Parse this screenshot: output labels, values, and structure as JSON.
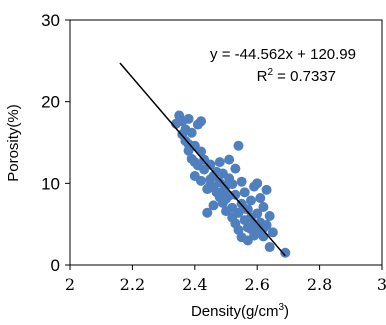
{
  "chart_data": {
    "type": "scatter",
    "title": "",
    "xlabel": "Density(g/cm",
    "xlabel_sup": "3",
    "xlabel_end": ")",
    "ylabel": "Porosity(%)",
    "xlim": [
      2,
      3
    ],
    "ylim": [
      0,
      30
    ],
    "x_ticks": [
      2,
      2.2,
      2.4,
      2.6,
      2.8,
      3
    ],
    "x_tick_labels": [
      "2",
      "2.2",
      "2.4",
      "2.6",
      "2.8",
      "3"
    ],
    "y_ticks": [
      0,
      10,
      20,
      30
    ],
    "y_tick_labels": [
      "0",
      "10",
      "20",
      "30"
    ],
    "grid": false,
    "marker_color": "#4f7fbd",
    "trendline_color": "#000000",
    "trendline": {
      "slope": -44.562,
      "intercept": 120.99,
      "x_range": [
        2.16,
        2.69
      ],
      "equation": "y = -44.562x + 120.99",
      "r2_prefix": "R",
      "r2_sup": "2",
      "r2_suffix": " = 0.7337"
    },
    "points": [
      {
        "x": 2.34,
        "y": 17.3
      },
      {
        "x": 2.35,
        "y": 18.3
      },
      {
        "x": 2.36,
        "y": 17.6
      },
      {
        "x": 2.37,
        "y": 16.6
      },
      {
        "x": 2.38,
        "y": 17.9
      },
      {
        "x": 2.37,
        "y": 15.2
      },
      {
        "x": 2.38,
        "y": 14.0
      },
      {
        "x": 2.39,
        "y": 13.0
      },
      {
        "x": 2.39,
        "y": 16.2
      },
      {
        "x": 2.4,
        "y": 14.6
      },
      {
        "x": 2.4,
        "y": 12.6
      },
      {
        "x": 2.41,
        "y": 17.2
      },
      {
        "x": 2.42,
        "y": 13.9
      },
      {
        "x": 2.42,
        "y": 17.6
      },
      {
        "x": 2.43,
        "y": 12.9
      },
      {
        "x": 2.43,
        "y": 11.7
      },
      {
        "x": 2.44,
        "y": 9.3
      },
      {
        "x": 2.45,
        "y": 9.8
      },
      {
        "x": 2.45,
        "y": 12.3
      },
      {
        "x": 2.46,
        "y": 10.9
      },
      {
        "x": 2.46,
        "y": 9.5
      },
      {
        "x": 2.47,
        "y": 11.4
      },
      {
        "x": 2.47,
        "y": 8.9
      },
      {
        "x": 2.48,
        "y": 12.6
      },
      {
        "x": 2.48,
        "y": 10.1
      },
      {
        "x": 2.49,
        "y": 7.6
      },
      {
        "x": 2.49,
        "y": 11.2
      },
      {
        "x": 2.5,
        "y": 9.7
      },
      {
        "x": 2.5,
        "y": 8.1
      },
      {
        "x": 2.51,
        "y": 12.9
      },
      {
        "x": 2.51,
        "y": 10.6
      },
      {
        "x": 2.52,
        "y": 7.0
      },
      {
        "x": 2.52,
        "y": 9.9
      },
      {
        "x": 2.53,
        "y": 8.6
      },
      {
        "x": 2.53,
        "y": 11.8
      },
      {
        "x": 2.54,
        "y": 14.6
      },
      {
        "x": 2.54,
        "y": 6.4
      },
      {
        "x": 2.55,
        "y": 10.2
      },
      {
        "x": 2.55,
        "y": 7.5
      },
      {
        "x": 2.56,
        "y": 5.5
      },
      {
        "x": 2.56,
        "y": 8.9
      },
      {
        "x": 2.57,
        "y": 6.8
      },
      {
        "x": 2.57,
        "y": 4.6
      },
      {
        "x": 2.58,
        "y": 7.9
      },
      {
        "x": 2.58,
        "y": 5.8
      },
      {
        "x": 2.59,
        "y": 3.6
      },
      {
        "x": 2.59,
        "y": 9.6
      },
      {
        "x": 2.6,
        "y": 6.3
      },
      {
        "x": 2.6,
        "y": 4.1
      },
      {
        "x": 2.61,
        "y": 8.2
      },
      {
        "x": 2.61,
        "y": 5.2
      },
      {
        "x": 2.62,
        "y": 3.5
      },
      {
        "x": 2.62,
        "y": 7.1
      },
      {
        "x": 2.63,
        "y": 9.2
      },
      {
        "x": 2.63,
        "y": 4.9
      },
      {
        "x": 2.64,
        "y": 2.2
      },
      {
        "x": 2.64,
        "y": 6.0
      },
      {
        "x": 2.65,
        "y": 4.0
      },
      {
        "x": 2.55,
        "y": 3.4
      },
      {
        "x": 2.57,
        "y": 3.0
      },
      {
        "x": 2.58,
        "y": 4.4
      },
      {
        "x": 2.52,
        "y": 5.8
      },
      {
        "x": 2.5,
        "y": 6.6
      },
      {
        "x": 2.46,
        "y": 7.3
      },
      {
        "x": 2.44,
        "y": 6.4
      },
      {
        "x": 2.4,
        "y": 10.9
      },
      {
        "x": 2.42,
        "y": 10.3
      },
      {
        "x": 2.48,
        "y": 8.3
      },
      {
        "x": 2.53,
        "y": 5.1
      },
      {
        "x": 2.56,
        "y": 6.9
      },
      {
        "x": 2.6,
        "y": 10.0
      },
      {
        "x": 2.62,
        "y": 4.5
      },
      {
        "x": 2.59,
        "y": 5.0
      },
      {
        "x": 2.54,
        "y": 4.3
      },
      {
        "x": 2.36,
        "y": 16.0
      },
      {
        "x": 2.38,
        "y": 14.8
      },
      {
        "x": 2.41,
        "y": 12.2
      },
      {
        "x": 2.45,
        "y": 10.5
      },
      {
        "x": 2.49,
        "y": 9.0
      },
      {
        "x": 2.51,
        "y": 8.5
      },
      {
        "x": 2.69,
        "y": 1.5
      }
    ]
  }
}
